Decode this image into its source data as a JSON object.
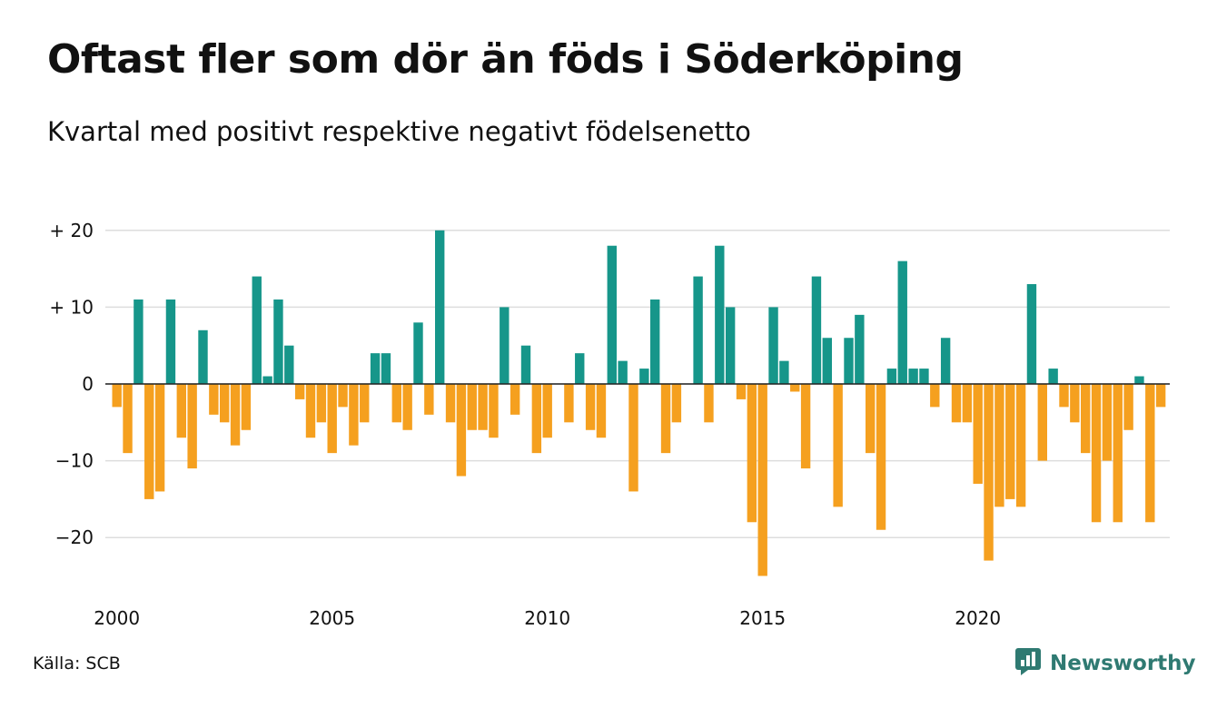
{
  "brand": {
    "name": "Newsworthy",
    "logo_icon": "bar-chart-speech-bubble-icon",
    "color": "#2f7a72"
  },
  "source": "Källa: SCB",
  "colors": {
    "positive": "#16968a",
    "negative": "#f5a01f",
    "grid": "#dddddd",
    "zero_line": "#222222"
  },
  "chart_data": {
    "type": "bar",
    "title": "Oftast fler som dör än föds i Söderköping",
    "subtitle": "Kvartal med positivt respektive negativt födelsenetto",
    "xlabel": "",
    "ylabel": "",
    "ylim": [
      -27,
      22
    ],
    "grid": true,
    "y_ticks": [
      {
        "value": 20,
        "label": "+ 20"
      },
      {
        "value": 10,
        "label": "+ 10"
      },
      {
        "value": 0,
        "label": "0"
      },
      {
        "value": -10,
        "label": "−10"
      },
      {
        "value": -20,
        "label": "−20"
      }
    ],
    "x_ticks": [
      {
        "index": 0,
        "label": "2000"
      },
      {
        "index": 20,
        "label": "2005"
      },
      {
        "index": 40,
        "label": "2010"
      },
      {
        "index": 60,
        "label": "2015"
      },
      {
        "index": 80,
        "label": "2020"
      }
    ],
    "period": "quarter",
    "first_period": "2000 Q1",
    "values": [
      -3,
      -9,
      11,
      -15,
      -14,
      11,
      -7,
      -11,
      7,
      -4,
      -5,
      -8,
      -6,
      14,
      1,
      11,
      5,
      -2,
      -7,
      -5,
      -9,
      -3,
      -8,
      -5,
      4,
      4,
      -5,
      -6,
      8,
      -4,
      20,
      -5,
      -12,
      -6,
      -6,
      -7,
      10,
      -4,
      5,
      -9,
      -7,
      0,
      -5,
      4,
      -6,
      -7,
      18,
      3,
      -14,
      2,
      11,
      -9,
      -5,
      0,
      14,
      -5,
      18,
      10,
      -2,
      -18,
      -25,
      10,
      3,
      -1,
      -11,
      14,
      6,
      -16,
      6,
      9,
      -9,
      -19,
      2,
      16,
      2,
      2,
      -3,
      6,
      -5,
      -5,
      -13,
      -23,
      -16,
      -15,
      -16,
      13,
      -10,
      2,
      -3,
      -5,
      -9,
      -18,
      -10,
      -18,
      -6,
      1,
      -18,
      -3
    ]
  }
}
